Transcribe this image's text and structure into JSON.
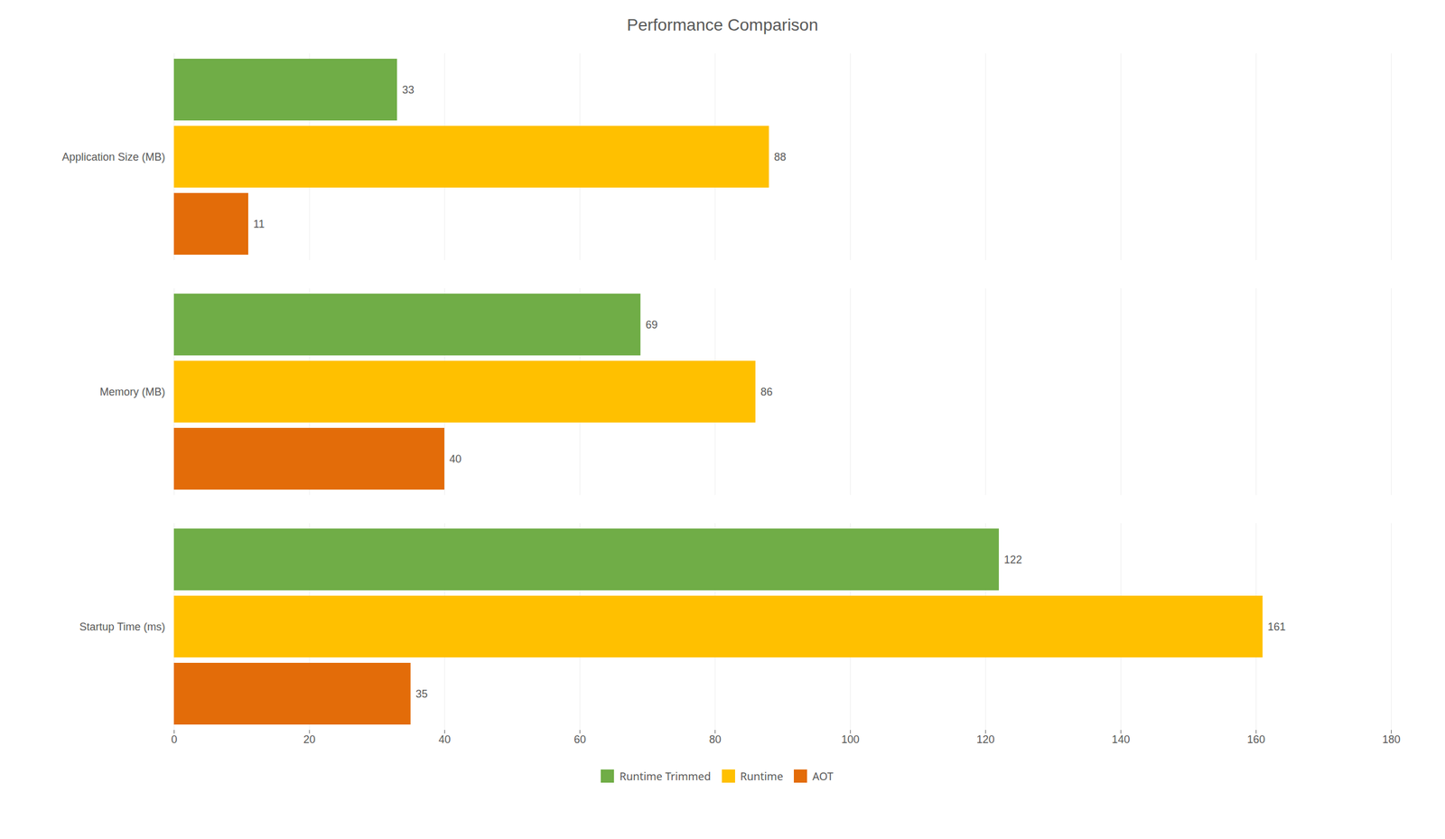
{
  "chart_data": {
    "type": "bar",
    "orientation": "horizontal",
    "title": "Performance Comparison",
    "categories": [
      "Application Size (MB)",
      "Memory (MB)",
      "Startup Time (ms)"
    ],
    "series": [
      {
        "name": "Runtime Trimmed",
        "color": "#70AD47",
        "values": [
          33,
          69,
          122
        ]
      },
      {
        "name": "Runtime",
        "color": "#FFC000",
        "values": [
          88,
          86,
          161
        ]
      },
      {
        "name": "AOT",
        "color": "#E36C09",
        "values": [
          11,
          40,
          35
        ]
      }
    ],
    "xlim": [
      0,
      180
    ],
    "xticks": [
      0,
      20,
      40,
      60,
      80,
      100,
      120,
      140,
      160,
      180
    ],
    "grid": true,
    "data_labels": true,
    "legend": "bottom"
  }
}
